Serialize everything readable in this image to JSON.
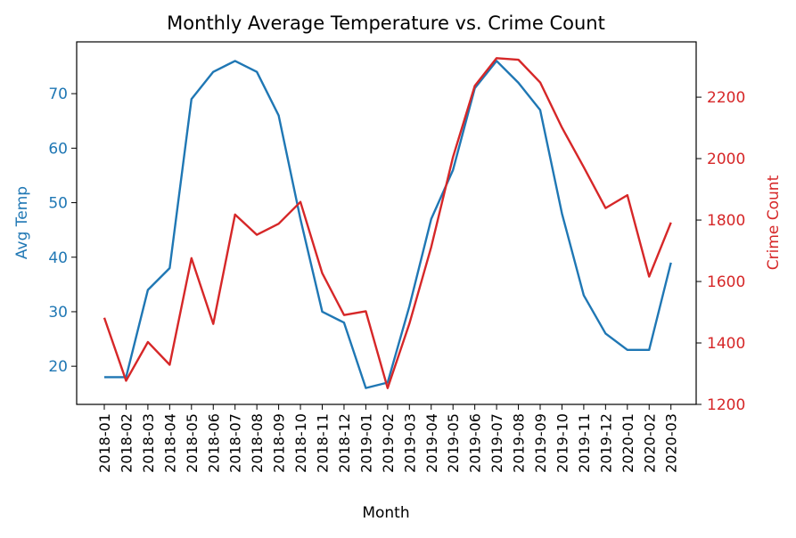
{
  "chart_data": {
    "type": "line",
    "title": "Monthly Average Temperature vs. Crime Count",
    "xlabel": "Month",
    "categories": [
      "2018-01",
      "2018-02",
      "2018-03",
      "2018-04",
      "2018-05",
      "2018-06",
      "2018-07",
      "2018-08",
      "2018-09",
      "2018-10",
      "2018-11",
      "2018-12",
      "2019-01",
      "2019-02",
      "2019-03",
      "2019-04",
      "2019-05",
      "2019-06",
      "2019-07",
      "2019-08",
      "2019-09",
      "2019-10",
      "2019-11",
      "2019-12",
      "2020-01",
      "2020-02",
      "2020-03"
    ],
    "left_axis": {
      "label": "Avg Temp",
      "color": "#1f77b4",
      "ylim": [
        13,
        79.5
      ],
      "ticks": [
        20,
        30,
        40,
        50,
        60,
        70
      ]
    },
    "right_axis": {
      "label": "Crime Count",
      "color": "#d62728",
      "ylim": [
        1200,
        2380
      ],
      "ticks": [
        1200,
        1400,
        1600,
        1800,
        2000,
        2200
      ]
    },
    "series": [
      {
        "axis": "left",
        "color": "#1f77b4",
        "values": [
          18,
          18,
          34,
          38,
          69,
          74,
          76,
          74,
          66,
          47,
          30,
          28,
          16,
          17,
          31,
          47,
          56,
          71,
          76,
          72,
          67,
          48,
          33,
          26,
          23,
          23,
          39
        ]
      },
      {
        "axis": "right",
        "color": "#d62728",
        "values": [
          1482,
          1277,
          1403,
          1329,
          1676,
          1462,
          1818,
          1752,
          1788,
          1859,
          1627,
          1491,
          1503,
          1253,
          1463,
          1712,
          2005,
          2237,
          2327,
          2322,
          2248,
          2101,
          1972,
          1839,
          1881,
          1616,
          1792
        ]
      }
    ],
    "grid": false,
    "legend": "none"
  }
}
